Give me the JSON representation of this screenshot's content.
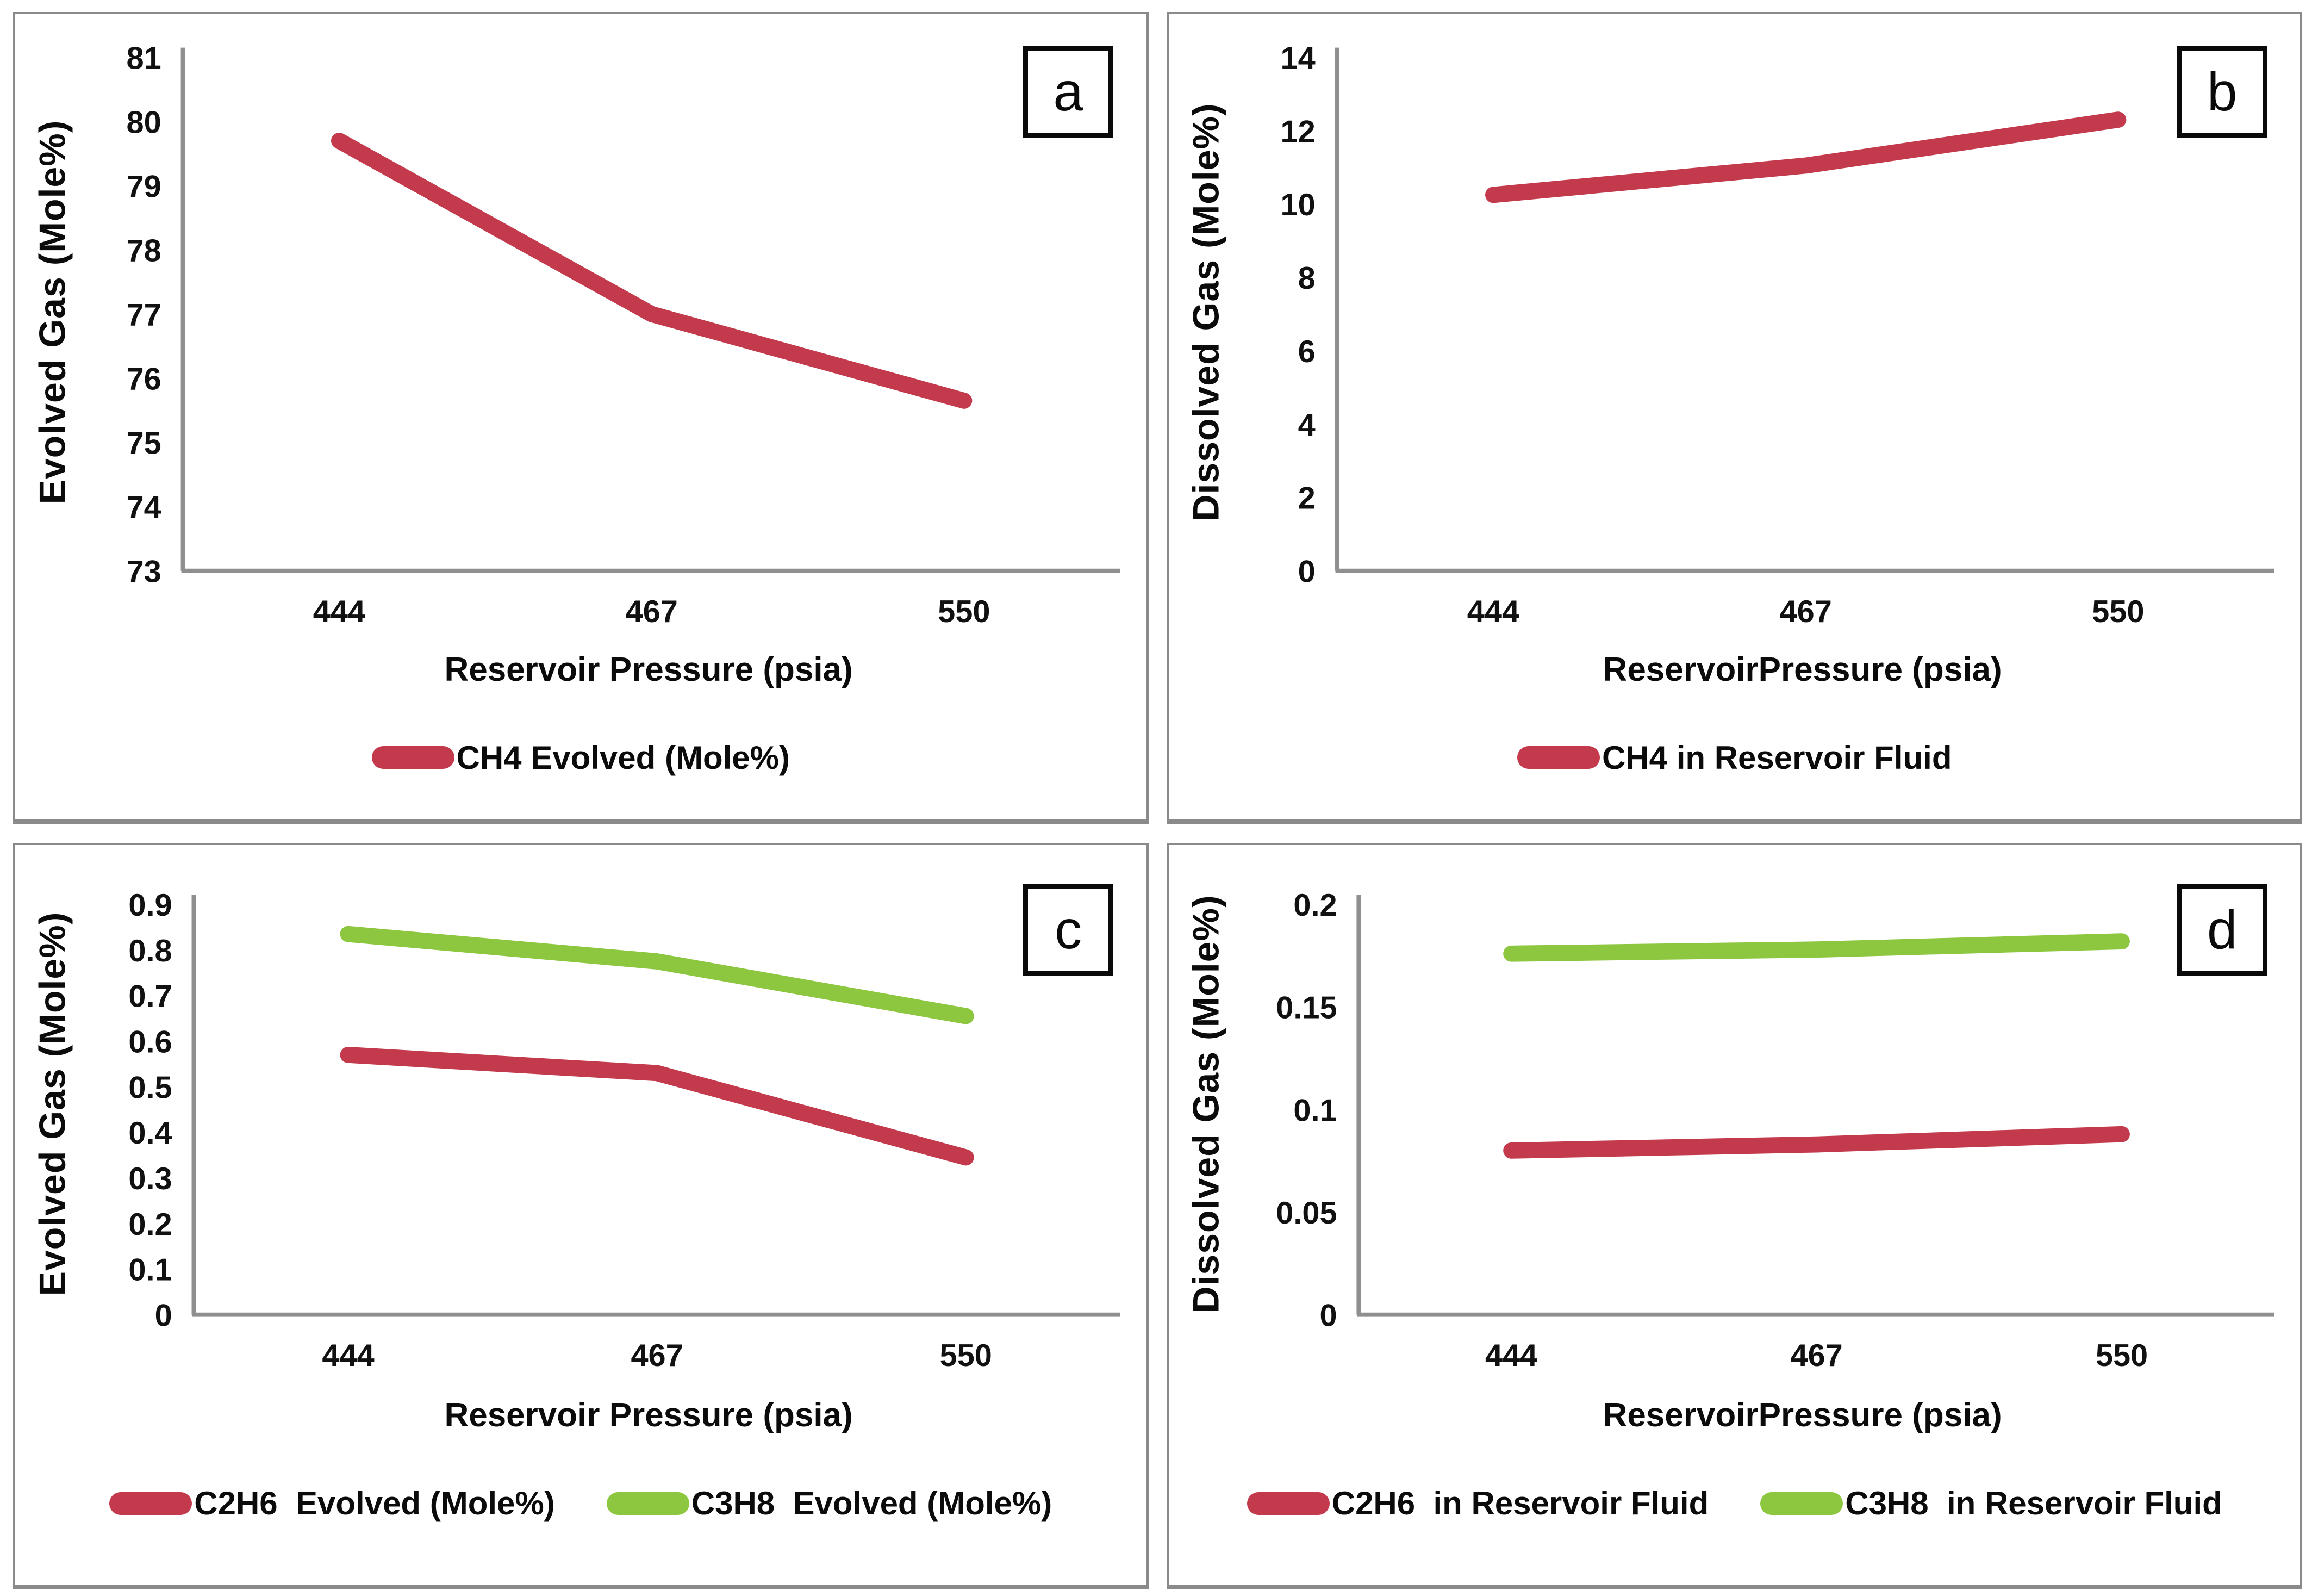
{
  "figure": {
    "background": "#ffffff",
    "panel_border_color": "#8a8a8a",
    "axis_color": "#8f8f8f",
    "text_color": "#111111",
    "accent_red": "#C33A4C",
    "accent_green": "#8DC63F"
  },
  "chart_data": [
    {
      "type": "line",
      "panel_label": "a",
      "ylabel": "Evolved Gas (Mole%)",
      "xlabel": "Reservoir Pressure (psia)",
      "categories": [
        "444",
        "467",
        "550"
      ],
      "ylim": [
        73,
        81
      ],
      "yticks": [
        81,
        80,
        79,
        78,
        77,
        76,
        75,
        74,
        73
      ],
      "grid": false,
      "legend_position": "bottom",
      "series": [
        {
          "name": "CH4 Evolved (Mole%)",
          "color": "#C33A4C",
          "values": [
            79.7,
            77.0,
            75.65
          ]
        }
      ]
    },
    {
      "type": "line",
      "panel_label": "b",
      "ylabel": "Dissolved Gas (Mole%)",
      "xlabel": "ReservoirPressure (psia)",
      "categories": [
        "444",
        "467",
        "550"
      ],
      "ylim": [
        0,
        14
      ],
      "yticks": [
        14,
        12,
        10,
        8,
        6,
        4,
        2,
        0
      ],
      "grid": false,
      "legend_position": "bottom",
      "series": [
        {
          "name": "CH4 in Reservoir Fluid",
          "color": "#C33A4C",
          "values": [
            10.25,
            11.05,
            12.3
          ]
        }
      ]
    },
    {
      "type": "line",
      "panel_label": "c",
      "ylabel": "Evolved Gas (Mole%)",
      "xlabel": "Reservoir Pressure (psia)",
      "categories": [
        "444",
        "467",
        "550"
      ],
      "ylim": [
        0,
        0.9
      ],
      "yticks": [
        0.9,
        0.8,
        0.7,
        0.6,
        0.5,
        0.4,
        0.3,
        0.2,
        0.1,
        0
      ],
      "grid": false,
      "legend_position": "bottom",
      "series": [
        {
          "name": "C2H6  Evolved (Mole%)",
          "color": "#C33A4C",
          "values": [
            0.57,
            0.53,
            0.345
          ]
        },
        {
          "name": "C3H8  Evolved (Mole%)",
          "color": "#8DC63F",
          "values": [
            0.835,
            0.775,
            0.655
          ]
        }
      ]
    },
    {
      "type": "line",
      "panel_label": "d",
      "ylabel": "Dissolved Gas (Mole%)",
      "xlabel": "ReservoirPressure (psia)",
      "categories": [
        "444",
        "467",
        "550"
      ],
      "ylim": [
        0,
        0.2
      ],
      "yticks": [
        0.2,
        0.15,
        0.1,
        0.05,
        0
      ],
      "grid": false,
      "legend_position": "bottom",
      "series": [
        {
          "name": "C2H6  in Reservoir Fluid",
          "color": "#C33A4C",
          "values": [
            0.08,
            0.083,
            0.088
          ]
        },
        {
          "name": "C3H8  in Reservoir Fluid",
          "color": "#8DC63F",
          "values": [
            0.176,
            0.178,
            0.182
          ]
        }
      ]
    }
  ]
}
